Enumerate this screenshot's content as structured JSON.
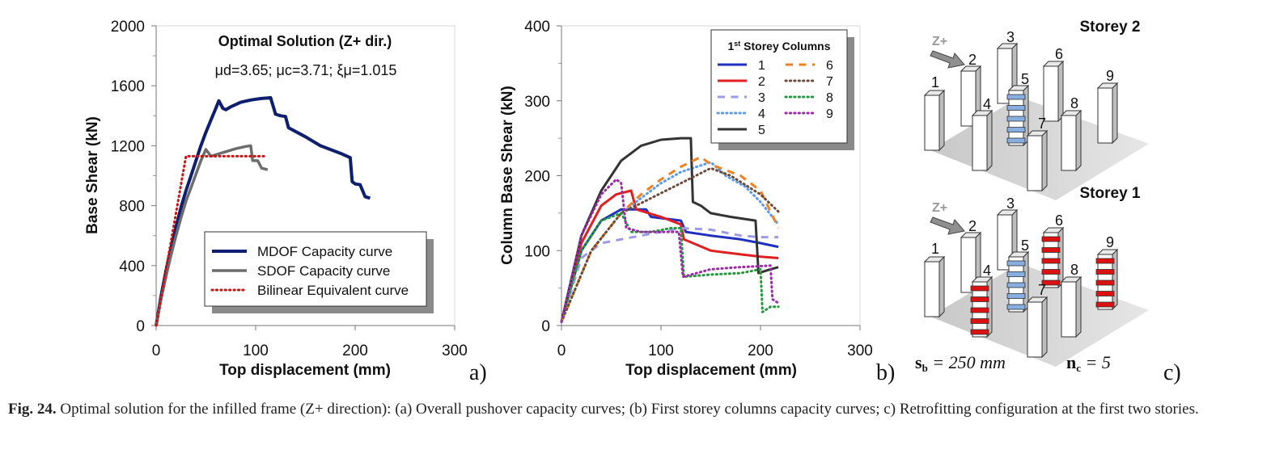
{
  "caption": {
    "label": "Fig. 24.",
    "text": "Optimal solution for the infilled frame (Z+ direction): (a) Overall pushover capacity curves; (b) First storey columns capacity curves; c) Retrofitting configuration at the first two stories."
  },
  "chart_data": [
    {
      "id": "a",
      "type": "line",
      "panel_label": "a)",
      "title": "Optimal Solution (Z+ dir.)",
      "subtitle": "μd=3.65;  μc=3.71;  ξμ=1.015",
      "xlabel": "Top displacement (mm)",
      "ylabel": "Base Shear (kN)",
      "xlim": [
        0,
        300
      ],
      "ylim": [
        0,
        2000
      ],
      "xticks": [
        0,
        100,
        200,
        300
      ],
      "yticks": [
        0,
        400,
        800,
        1200,
        1600,
        2000
      ],
      "legend_position": "bottom-right",
      "series": [
        {
          "name": "MDOF Capacity  curve",
          "color": "#0d1f6e",
          "dash": "solid",
          "width": 4,
          "points": [
            [
              0,
              0
            ],
            [
              5,
              200
            ],
            [
              10,
              370
            ],
            [
              15,
              520
            ],
            [
              20,
              660
            ],
            [
              25,
              790
            ],
            [
              30,
              900
            ],
            [
              35,
              1000
            ],
            [
              40,
              1100
            ],
            [
              45,
              1200
            ],
            [
              50,
              1290
            ],
            [
              55,
              1370
            ],
            [
              60,
              1450
            ],
            [
              63,
              1500
            ],
            [
              67,
              1450
            ],
            [
              70,
              1440
            ],
            [
              75,
              1460
            ],
            [
              85,
              1490
            ],
            [
              95,
              1505
            ],
            [
              105,
              1515
            ],
            [
              115,
              1520
            ],
            [
              120,
              1410
            ],
            [
              125,
              1400
            ],
            [
              130,
              1395
            ],
            [
              133,
              1320
            ],
            [
              150,
              1260
            ],
            [
              165,
              1200
            ],
            [
              185,
              1150
            ],
            [
              195,
              1120
            ],
            [
              197,
              960
            ],
            [
              200,
              945
            ],
            [
              205,
              940
            ],
            [
              210,
              860
            ],
            [
              215,
              850
            ]
          ]
        },
        {
          "name": "SDOF Capacity curve",
          "color": "#6d6d6d",
          "dash": "solid",
          "width": 3.5,
          "points": [
            [
              0,
              0
            ],
            [
              5,
              180
            ],
            [
              10,
              330
            ],
            [
              15,
              470
            ],
            [
              20,
              600
            ],
            [
              25,
              720
            ],
            [
              30,
              830
            ],
            [
              35,
              920
            ],
            [
              40,
              1010
            ],
            [
              45,
              1100
            ],
            [
              50,
              1175
            ],
            [
              55,
              1130
            ],
            [
              60,
              1140
            ],
            [
              70,
              1160
            ],
            [
              80,
              1180
            ],
            [
              90,
              1195
            ],
            [
              95,
              1200
            ],
            [
              97,
              1100
            ],
            [
              102,
              1100
            ],
            [
              106,
              1050
            ],
            [
              112,
              1040
            ]
          ]
        },
        {
          "name": "Bilinear Equivalent curve",
          "color": "#cc1111",
          "dash": "dotted",
          "width": 3,
          "points": [
            [
              0,
              0
            ],
            [
              30,
              1130
            ],
            [
              110,
              1130
            ]
          ]
        }
      ]
    },
    {
      "id": "b",
      "type": "line",
      "panel_label": "b)",
      "xlabel": "Top displacement (mm)",
      "ylabel": "Column Base Shear (kN)",
      "xlim": [
        0,
        300
      ],
      "ylim": [
        0,
        400
      ],
      "xticks": [
        0,
        100,
        200,
        300
      ],
      "yticks": [
        0,
        100,
        200,
        300,
        400
      ],
      "legend_title": "1st Storey Columns",
      "legend_position": "top-right",
      "series": [
        {
          "name": "1",
          "color": "#1f2fc0",
          "dash": "solid",
          "width": 3,
          "points": [
            [
              0,
              5
            ],
            [
              20,
              100
            ],
            [
              40,
              140
            ],
            [
              60,
              155
            ],
            [
              85,
              155
            ],
            [
              90,
              145
            ],
            [
              120,
              140
            ],
            [
              125,
              125
            ],
            [
              150,
              120
            ],
            [
              180,
              115
            ],
            [
              200,
              110
            ],
            [
              218,
              105
            ]
          ]
        },
        {
          "name": "2",
          "color": "#e02020",
          "dash": "solid",
          "width": 3,
          "points": [
            [
              0,
              5
            ],
            [
              20,
              110
            ],
            [
              40,
              160
            ],
            [
              55,
              175
            ],
            [
              70,
              180
            ],
            [
              75,
              155
            ],
            [
              100,
              145
            ],
            [
              120,
              135
            ],
            [
              123,
              115
            ],
            [
              150,
              100
            ],
            [
              180,
              95
            ],
            [
              200,
              92
            ],
            [
              218,
              90
            ]
          ]
        },
        {
          "name": "3",
          "color": "#9a9ae8",
          "dash": "dashed",
          "width": 3,
          "points": [
            [
              0,
              5
            ],
            [
              20,
              90
            ],
            [
              40,
              110
            ],
            [
              60,
              115
            ],
            [
              80,
              120
            ],
            [
              100,
              125
            ],
            [
              120,
              130
            ],
            [
              150,
              128
            ],
            [
              180,
              120
            ],
            [
              200,
              118
            ],
            [
              218,
              118
            ]
          ]
        },
        {
          "name": "4",
          "color": "#5a9ae8",
          "dash": "dotted",
          "width": 3,
          "points": [
            [
              0,
              5
            ],
            [
              30,
              100
            ],
            [
              60,
              150
            ],
            [
              80,
              170
            ],
            [
              100,
              190
            ],
            [
              120,
              205
            ],
            [
              150,
              218
            ],
            [
              165,
              200
            ],
            [
              185,
              185
            ],
            [
              200,
              165
            ],
            [
              218,
              135
            ]
          ]
        },
        {
          "name": "5",
          "color": "#333333",
          "dash": "solid",
          "width": 3,
          "points": [
            [
              0,
              5
            ],
            [
              20,
              120
            ],
            [
              40,
              180
            ],
            [
              60,
              220
            ],
            [
              80,
              240
            ],
            [
              100,
              248
            ],
            [
              120,
              250
            ],
            [
              130,
              250
            ],
            [
              132,
              165
            ],
            [
              140,
              160
            ],
            [
              150,
              150
            ],
            [
              170,
              145
            ],
            [
              195,
              140
            ],
            [
              198,
              70
            ],
            [
              210,
              75
            ],
            [
              218,
              78
            ]
          ]
        },
        {
          "name": "6",
          "color": "#f08020",
          "dash": "dashed",
          "width": 3,
          "points": [
            [
              0,
              5
            ],
            [
              30,
              100
            ],
            [
              60,
              150
            ],
            [
              80,
              175
            ],
            [
              100,
              195
            ],
            [
              120,
              212
            ],
            [
              140,
              225
            ],
            [
              150,
              215
            ],
            [
              180,
              200
            ],
            [
              200,
              180
            ],
            [
              218,
              130
            ]
          ]
        },
        {
          "name": "7",
          "color": "#6b4a3a",
          "dash": "dotted",
          "width": 3,
          "points": [
            [
              0,
              5
            ],
            [
              30,
              100
            ],
            [
              60,
              150
            ],
            [
              90,
              170
            ],
            [
              120,
              190
            ],
            [
              150,
              210
            ],
            [
              170,
              200
            ],
            [
              200,
              175
            ],
            [
              218,
              152
            ]
          ]
        },
        {
          "name": "8",
          "color": "#1f9a3a",
          "dash": "dotted",
          "width": 3,
          "points": [
            [
              0,
              5
            ],
            [
              20,
              100
            ],
            [
              40,
              140
            ],
            [
              60,
              150
            ],
            [
              70,
              125
            ],
            [
              90,
              125
            ],
            [
              110,
              130
            ],
            [
              120,
              130
            ],
            [
              123,
              65
            ],
            [
              150,
              68
            ],
            [
              180,
              70
            ],
            [
              200,
              75
            ],
            [
              202,
              18
            ],
            [
              210,
              25
            ],
            [
              218,
              25
            ]
          ]
        },
        {
          "name": "9",
          "color": "#9a2aa8",
          "dash": "dotted",
          "width": 3,
          "points": [
            [
              0,
              5
            ],
            [
              20,
              120
            ],
            [
              40,
              175
            ],
            [
              55,
              195
            ],
            [
              60,
              190
            ],
            [
              65,
              130
            ],
            [
              80,
              125
            ],
            [
              100,
              125
            ],
            [
              118,
              125
            ],
            [
              122,
              65
            ],
            [
              150,
              75
            ],
            [
              180,
              78
            ],
            [
              210,
              80
            ],
            [
              212,
              35
            ],
            [
              218,
              30
            ]
          ]
        }
      ]
    }
  ],
  "schematic": {
    "panel_label": "c)",
    "direction_label": "Z+",
    "sb_symbol": "s",
    "sb_sub": "b",
    "sb_value": " = 250 mm",
    "nc_symbol": "n",
    "nc_sub": "c",
    "nc_value": " = 5",
    "storeys": [
      {
        "title": "Storey 2",
        "labels": [
          "1",
          "2",
          "3",
          "4",
          "5",
          "6",
          "7",
          "8",
          "9"
        ],
        "retrofitted": {
          "5": "blue"
        }
      },
      {
        "title": "Storey 1",
        "labels": [
          "1",
          "2",
          "3",
          "4",
          "5",
          "6",
          "7",
          "8",
          "9"
        ],
        "retrofitted": {
          "4": "red",
          "5": "blue",
          "6": "red",
          "9": "red"
        }
      }
    ]
  }
}
